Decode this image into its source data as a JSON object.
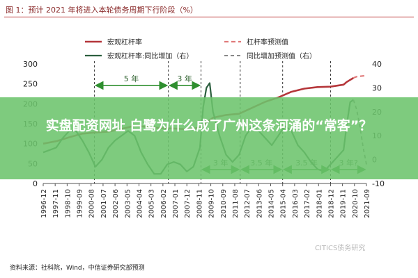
{
  "header": {
    "title": "图 1：预计 2021 年将进入本轮债务周期下行阶段（%）"
  },
  "overlay": {
    "headline": "实盘配资网址 白鹭为什么成了广州这条河涌的“常客”？"
  },
  "footer": {
    "source": "资料来源：社科院，Wind，中信证券研究部预测",
    "watermark": "CITICS债务研究"
  },
  "colors": {
    "leverage": "#b5363a",
    "leverage_forecast": "#e07a7a",
    "yoy": "#2c5f3f",
    "yoy_forecast": "#777777",
    "annotation_arrow": "#2f8f2f",
    "phase_line": "#333333"
  },
  "chart_data": {
    "type": "line",
    "x_tick_labels": [
      "1996-12",
      "1997-11",
      "1998-10",
      "1999-09",
      "2000-08",
      "2001-07",
      "2002-06",
      "2003-05",
      "2004-04",
      "2005-03",
      "2006-02",
      "2007-01",
      "2007-12",
      "2008-11",
      "2009-10",
      "2010-09",
      "2011-08",
      "2012-07",
      "2013-06",
      "2014-05",
      "2015-04",
      "2016-03",
      "2017-02",
      "2018-01",
      "2018-12",
      "2019-11",
      "2020-10",
      "2021-09"
    ],
    "x_range": [
      "1996-12",
      "2021-09"
    ],
    "left_axis": {
      "ticks": [
        0,
        50,
        100,
        150,
        200,
        250,
        300
      ],
      "range": [
        0,
        300
      ]
    },
    "right_axis": {
      "ticks": [
        -10,
        0,
        10,
        20,
        30,
        40
      ],
      "range": [
        -10,
        40
      ]
    },
    "legend": {
      "position": "top",
      "entries": [
        {
          "name": "宏观杠杆率",
          "style": "solid",
          "color": "#b5363a"
        },
        {
          "name": "杠杆率预测值",
          "style": "dashed",
          "color": "#e07a7a"
        },
        {
          "name": "宏观杠杆率:同比增加（右）",
          "style": "solid",
          "color": "#2c5f3f"
        },
        {
          "name": "同比增加预测值（右）",
          "style": "dashed",
          "color": "#777777"
        }
      ]
    },
    "series": [
      {
        "name": "宏观杠杆率",
        "axis": "left",
        "points": [
          [
            "1996-12",
            100
          ],
          [
            "1997-12",
            106
          ],
          [
            "1998-12",
            116
          ],
          [
            "1999-12",
            125
          ],
          [
            "2000-12",
            128
          ],
          [
            "2001-12",
            130
          ],
          [
            "2002-12",
            137
          ],
          [
            "2003-12",
            145
          ],
          [
            "2004-12",
            142
          ],
          [
            "2005-12",
            139
          ],
          [
            "2006-12",
            138
          ],
          [
            "2007-12",
            136
          ],
          [
            "2008-12",
            140
          ],
          [
            "2009-12",
            165
          ],
          [
            "2010-12",
            172
          ],
          [
            "2011-12",
            175
          ],
          [
            "2012-12",
            190
          ],
          [
            "2013-12",
            205
          ],
          [
            "2014-12",
            216
          ],
          [
            "2015-12",
            230
          ],
          [
            "2016-12",
            238
          ],
          [
            "2017-12",
            242
          ],
          [
            "2018-12",
            243
          ],
          [
            "2019-12",
            248
          ],
          [
            "2020-03",
            255
          ],
          [
            "2020-09",
            265
          ]
        ]
      },
      {
        "name": "杠杆率预测值",
        "axis": "left",
        "points": [
          [
            "2020-09",
            265
          ],
          [
            "2020-12",
            268
          ],
          [
            "2021-06",
            270
          ],
          [
            "2021-09",
            270
          ]
        ]
      },
      {
        "name": "宏观杠杆率:同比增加（右）",
        "axis": "right",
        "points": [
          [
            "1996-12",
            3
          ],
          [
            "1997-06",
            4
          ],
          [
            "1997-12",
            5
          ],
          [
            "1998-06",
            9
          ],
          [
            "1998-12",
            12
          ],
          [
            "1999-06",
            12
          ],
          [
            "1999-12",
            8
          ],
          [
            "2000-06",
            3
          ],
          [
            "2000-12",
            -3
          ],
          [
            "2001-06",
            0
          ],
          [
            "2001-12",
            5
          ],
          [
            "2002-06",
            8
          ],
          [
            "2002-12",
            10
          ],
          [
            "2003-06",
            12
          ],
          [
            "2003-12",
            10
          ],
          [
            "2004-06",
            3
          ],
          [
            "2004-12",
            -2
          ],
          [
            "2005-06",
            -6
          ],
          [
            "2005-12",
            -6
          ],
          [
            "2006-06",
            -2
          ],
          [
            "2006-12",
            -1
          ],
          [
            "2007-06",
            -2
          ],
          [
            "2007-12",
            -5
          ],
          [
            "2008-06",
            -3
          ],
          [
            "2008-12",
            5
          ],
          [
            "2009-03",
            22
          ],
          [
            "2009-06",
            30
          ],
          [
            "2009-09",
            32
          ],
          [
            "2009-12",
            20
          ],
          [
            "2010-06",
            10
          ],
          [
            "2010-12",
            2
          ],
          [
            "2011-06",
            -1
          ],
          [
            "2011-12",
            2
          ],
          [
            "2012-06",
            10
          ],
          [
            "2012-12",
            14
          ],
          [
            "2013-06",
            12
          ],
          [
            "2013-12",
            9
          ],
          [
            "2014-06",
            6
          ],
          [
            "2014-12",
            10
          ],
          [
            "2015-06",
            14
          ],
          [
            "2015-12",
            12
          ],
          [
            "2016-06",
            6
          ],
          [
            "2016-12",
            3
          ],
          [
            "2017-06",
            -1
          ],
          [
            "2017-12",
            -4
          ],
          [
            "2018-06",
            -5
          ],
          [
            "2018-12",
            -2
          ],
          [
            "2019-06",
            1
          ],
          [
            "2019-12",
            4
          ],
          [
            "2020-03",
            15
          ],
          [
            "2020-06",
            24
          ],
          [
            "2020-09",
            25
          ]
        ]
      },
      {
        "name": "同比增加预测值（右）",
        "axis": "right",
        "points": [
          [
            "2020-09",
            25
          ],
          [
            "2020-12",
            21
          ],
          [
            "2021-03",
            14
          ],
          [
            "2021-06",
            5
          ],
          [
            "2021-09",
            -2
          ]
        ]
      }
    ],
    "phase_lines": [
      "2000-11",
      "2006-07",
      "2009-01",
      "2012-01",
      "2015-04",
      "2018-12"
    ],
    "annotations": [
      {
        "label": "5 年",
        "from": "2000-11",
        "to": "2006-07",
        "level": 246,
        "axis": "left"
      },
      {
        "label": "3 年",
        "from": "2006-07",
        "to": "2009-01",
        "level": 246,
        "axis": "left"
      },
      {
        "label": "3 年",
        "from": "2009-01",
        "to": "2012-01",
        "level": 35,
        "axis": "left"
      },
      {
        "label": "3.5 年",
        "from": "2012-01",
        "to": "2015-04",
        "level": 35,
        "axis": "left"
      },
      {
        "label": "3.5 年",
        "from": "2015-04",
        "to": "2018-12",
        "level": 35,
        "axis": "left"
      },
      {
        "label": "3 年?",
        "from": "2018-12",
        "to": "2021-09",
        "level": 35,
        "axis": "left"
      }
    ]
  }
}
